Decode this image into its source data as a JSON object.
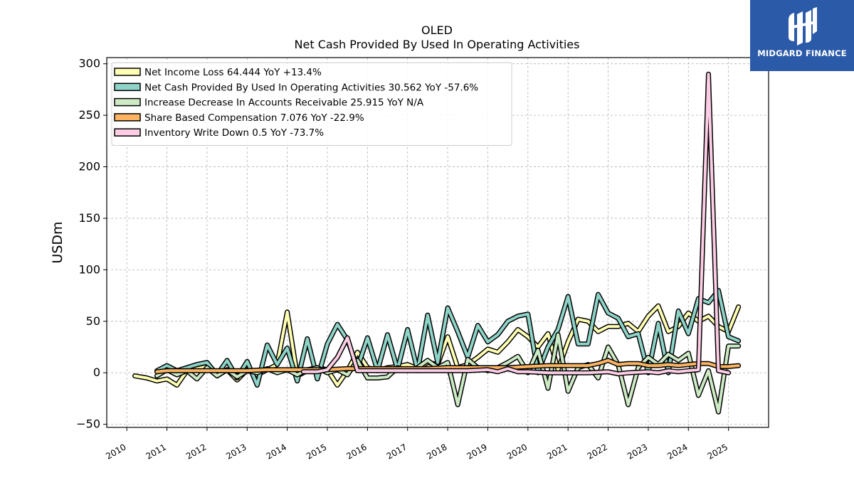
{
  "logo": {
    "text": "MIDGARD FINANCE"
  },
  "chart_data": {
    "type": "line",
    "title": "OLED",
    "subtitle": "Net Cash Provided By Used In Operating Activities",
    "ylabel": "USDm",
    "xlabel": "",
    "ylim": [
      -53,
      306
    ],
    "xlim": [
      2009.5,
      2026.0
    ],
    "yticks": [
      -50,
      0,
      50,
      100,
      150,
      200,
      250,
      300
    ],
    "ytick_labels": [
      "−50",
      "0",
      "50",
      "100",
      "150",
      "200",
      "250",
      "300"
    ],
    "xticks": [
      2010,
      2011,
      2012,
      2013,
      2014,
      2015,
      2016,
      2017,
      2018,
      2019,
      2020,
      2021,
      2022,
      2023,
      2024,
      2025
    ],
    "xtick_labels": [
      "2010",
      "2011",
      "2012",
      "2013",
      "2014",
      "2015",
      "2016",
      "2017",
      "2018",
      "2019",
      "2020",
      "2021",
      "2022",
      "2023",
      "2024",
      "2025"
    ],
    "grid": true,
    "legend_position": "top-left",
    "series": [
      {
        "name": "Net Income Loss  64.444 YoY +13.4%",
        "color": "#ffffb3",
        "x": [
          2010.2,
          2010.5,
          2010.75,
          2011.0,
          2011.25,
          2011.5,
          2011.75,
          2012.0,
          2012.25,
          2012.5,
          2012.75,
          2013.0,
          2013.25,
          2013.5,
          2013.75,
          2014.0,
          2014.25,
          2014.5,
          2014.75,
          2015.0,
          2015.25,
          2015.5,
          2015.75,
          2016.0,
          2016.25,
          2016.5,
          2016.75,
          2017.0,
          2017.25,
          2017.5,
          2017.75,
          2018.0,
          2018.25,
          2018.5,
          2018.75,
          2019.0,
          2019.25,
          2019.5,
          2019.75,
          2020.0,
          2020.25,
          2020.5,
          2020.75,
          2021.0,
          2021.25,
          2021.5,
          2021.75,
          2022.0,
          2022.25,
          2022.5,
          2022.75,
          2023.0,
          2023.25,
          2023.5,
          2023.75,
          2024.0,
          2024.25,
          2024.5,
          2024.75,
          2025.0,
          2025.25
        ],
        "values": [
          -3,
          -5,
          -8,
          -6,
          -12,
          2,
          4,
          6,
          -3,
          3,
          -7,
          3,
          -2,
          3,
          8,
          59,
          -3,
          2,
          5,
          3,
          -12,
          2,
          20,
          5,
          2,
          5,
          6,
          8,
          4,
          10,
          8,
          35,
          5,
          8,
          15,
          23,
          20,
          30,
          42,
          35,
          25,
          38,
          3,
          30,
          52,
          50,
          40,
          45,
          45,
          48,
          40,
          55,
          65,
          40,
          45,
          58,
          50,
          55,
          45,
          40,
          64
        ]
      },
      {
        "name": "Net Cash Provided By Used In Operating Activities  30.562 YoY -57.6%",
        "color": "#8dd3c7",
        "x": [
          2010.75,
          2011.0,
          2011.25,
          2011.5,
          2011.75,
          2012.0,
          2012.25,
          2012.5,
          2012.75,
          2013.0,
          2013.25,
          2013.5,
          2013.75,
          2014.0,
          2014.25,
          2014.5,
          2014.75,
          2015.0,
          2015.25,
          2015.5,
          2015.75,
          2016.0,
          2016.25,
          2016.5,
          2016.75,
          2017.0,
          2017.25,
          2017.5,
          2017.75,
          2018.0,
          2018.25,
          2018.5,
          2018.75,
          2019.0,
          2019.25,
          2019.5,
          2019.75,
          2020.0,
          2020.25,
          2020.5,
          2020.75,
          2021.0,
          2021.25,
          2021.5,
          2021.75,
          2022.0,
          2022.25,
          2022.5,
          2022.75,
          2023.0,
          2023.25,
          2023.5,
          2023.75,
          2024.0,
          2024.25,
          2024.5,
          2024.75,
          2025.0,
          2025.25
        ],
        "values": [
          2,
          7,
          2,
          5,
          8,
          10,
          -2,
          12,
          -5,
          11,
          -12,
          27,
          8,
          24,
          -8,
          33,
          -6,
          28,
          47,
          32,
          5,
          34,
          2,
          37,
          3,
          42,
          2,
          56,
          10,
          63,
          40,
          15,
          46,
          30,
          37,
          50,
          55,
          57,
          0,
          25,
          42,
          74,
          28,
          28,
          76,
          58,
          53,
          35,
          38,
          0,
          48,
          0,
          60,
          38,
          72,
          68,
          80,
          35,
          31
        ]
      },
      {
        "name": "Increase Decrease In Accounts Receivable  25.915 YoY N/A",
        "color": "#ccebc5",
        "x": [
          2010.75,
          2011.0,
          2011.25,
          2011.5,
          2011.75,
          2012.0,
          2012.25,
          2012.5,
          2012.75,
          2013.0,
          2013.25,
          2013.5,
          2013.75,
          2014.0,
          2014.25,
          2014.5,
          2014.75,
          2015.0,
          2015.25,
          2015.5,
          2015.75,
          2016.0,
          2016.25,
          2016.5,
          2016.75,
          2017.0,
          2017.25,
          2017.5,
          2017.75,
          2018.0,
          2018.25,
          2018.5,
          2018.75,
          2019.0,
          2019.25,
          2019.5,
          2019.75,
          2020.0,
          2020.25,
          2020.5,
          2020.75,
          2021.0,
          2021.25,
          2021.5,
          2021.75,
          2022.0,
          2022.25,
          2022.5,
          2022.75,
          2023.0,
          2023.25,
          2023.5,
          2023.75,
          2024.0,
          2024.25,
          2024.5,
          2024.75,
          2025.0,
          2025.25
        ],
        "values": [
          -3,
          3,
          -2,
          2,
          -6,
          5,
          -3,
          3,
          -4,
          2,
          0,
          4,
          0,
          3,
          -2,
          3,
          5,
          0,
          3,
          -2,
          12,
          -5,
          -5,
          -4,
          5,
          2,
          5,
          12,
          5,
          10,
          -31,
          13,
          5,
          2,
          5,
          10,
          16,
          0,
          22,
          -15,
          37,
          -18,
          5,
          8,
          -5,
          25,
          8,
          -31,
          5,
          15,
          8,
          18,
          12,
          19,
          -22,
          2,
          -38,
          26,
          26
        ]
      },
      {
        "name": "Share Based Compensation  7.076 YoY -22.9%",
        "color": "#fdb462",
        "x": [
          2010.75,
          2011.0,
          2011.5,
          2012.0,
          2012.5,
          2013.0,
          2013.5,
          2014.0,
          2014.5,
          2015.0,
          2015.5,
          2016.0,
          2016.5,
          2017.0,
          2017.5,
          2018.0,
          2018.5,
          2019.0,
          2019.5,
          2020.0,
          2020.5,
          2021.0,
          2021.5,
          2021.75,
          2022.0,
          2022.25,
          2022.5,
          2022.75,
          2023.0,
          2023.25,
          2023.5,
          2023.75,
          2024.0,
          2024.25,
          2024.5,
          2024.75,
          2025.0,
          2025.25
        ],
        "values": [
          1,
          2,
          2,
          2,
          2,
          2,
          3,
          3,
          3,
          3,
          4,
          4,
          4,
          4,
          4,
          5,
          5,
          5,
          5,
          6,
          7,
          7,
          7,
          9,
          12,
          8,
          9,
          9,
          7,
          7,
          8,
          7,
          8,
          9,
          9,
          6,
          6,
          7
        ]
      },
      {
        "name": "Inventory Write Down  0.5 YoY -73.7%",
        "color": "#fccde5",
        "x": [
          2014.4,
          2014.75,
          2015.0,
          2015.25,
          2015.5,
          2015.75,
          2016.0,
          2016.5,
          2017.0,
          2017.5,
          2018.0,
          2018.5,
          2019.0,
          2019.25,
          2019.5,
          2019.75,
          2020.0,
          2020.5,
          2021.0,
          2021.5,
          2022.0,
          2022.25,
          2022.5,
          2023.0,
          2023.25,
          2023.5,
          2023.75,
          2024.0,
          2024.25,
          2024.5,
          2024.75,
          2025.0
        ],
        "values": [
          1,
          1,
          3,
          15,
          34,
          2,
          2,
          2,
          2,
          2,
          2,
          2,
          3,
          1,
          4,
          1,
          1,
          0,
          0,
          0,
          1,
          -1,
          0,
          1,
          0,
          2,
          1,
          2,
          3,
          290,
          2,
          0
        ]
      }
    ]
  }
}
